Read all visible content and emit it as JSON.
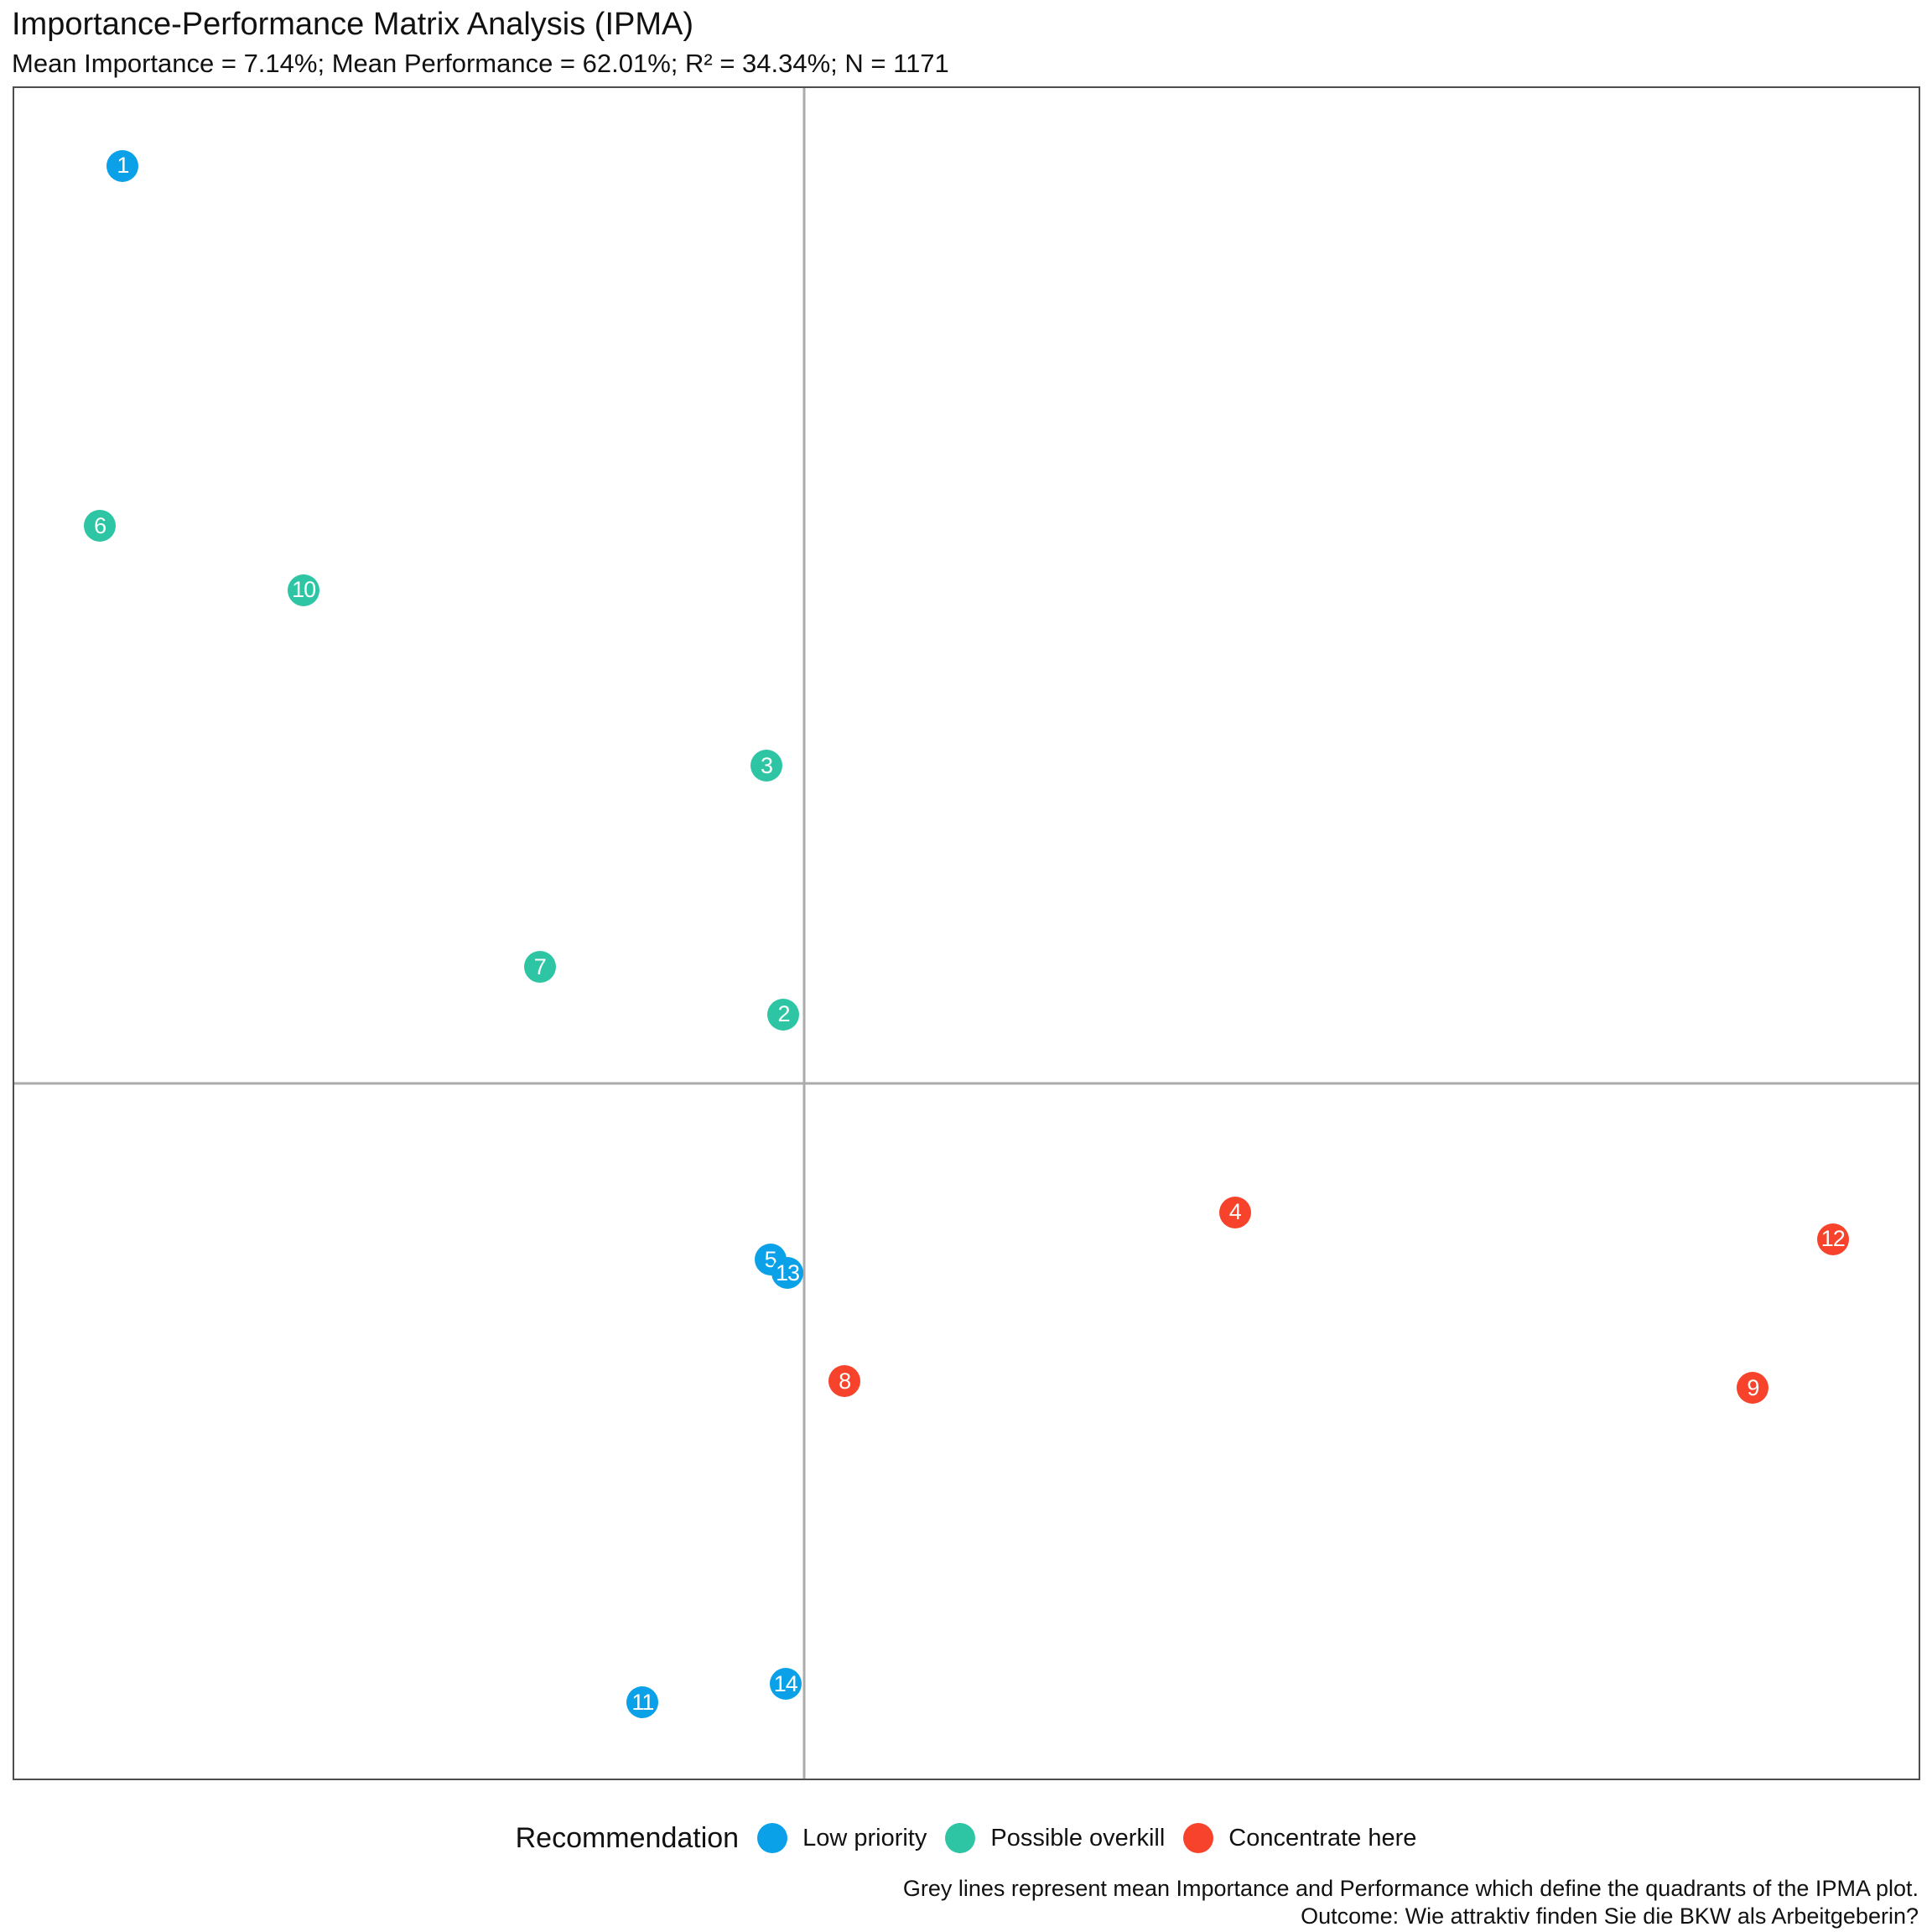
{
  "title": "Importance-Performance Matrix Analysis (IPMA)",
  "subtitle": "Mean Importance = 7.14%; Mean Performance = 62.01%; R² = 34.34%; N = 1171",
  "colors": {
    "low_priority": "#0aa1e8",
    "possible_overkill": "#2ec5a5",
    "concentrate_here": "#f8432c",
    "mean_line": "#ababab",
    "panel_border": "#4d4d4d"
  },
  "legend": {
    "title": "Recommendation",
    "items": [
      {
        "label": "Low priority",
        "category": "low_priority"
      },
      {
        "label": "Possible overkill",
        "category": "possible_overkill"
      },
      {
        "label": "Concentrate here",
        "category": "concentrate_here"
      }
    ]
  },
  "footnotes": {
    "line1": "Grey lines represent mean Importance and Performance which define the quadrants of the IPMA plot.",
    "line2": "Outcome: Wie attraktiv finden Sie die BKW als Arbeitgeberin?"
  },
  "chart_data": {
    "type": "scatter",
    "title": "Importance-Performance Matrix Analysis (IPMA)",
    "subtitle": "Mean Importance = 7.14%; Mean Performance = 62.01%; R² = 34.34%; N = 1171",
    "stats": {
      "mean_importance": "7.14%",
      "mean_performance": "62.01%",
      "r_squared": "34.34%",
      "n": 1171
    },
    "axes": {
      "x": "Importance",
      "y": "Performance",
      "ticks_visible": false,
      "axis_labels_visible": false
    },
    "grid": "off",
    "legend_position": "bottom",
    "quadrant_lines": {
      "vertical_x_pct": 41.5,
      "horizontal_y_pct": 58.9
    },
    "points": [
      {
        "id": 1,
        "label": "1",
        "category": "low_priority",
        "category_label": "Low priority",
        "x_pct": 39.7,
        "y_pct_from_top": 69.3
      },
      {
        "id": 2,
        "label": "2",
        "category": "possible_overkill",
        "category_label": "Possible overkill",
        "x_pct": 40.4,
        "y_pct_from_top": 54.8
      },
      {
        "id": 3,
        "label": "3",
        "category": "possible_overkill",
        "category_label": "Possible overkill",
        "x_pct": 39.5,
        "y_pct_from_top": 40.1
      },
      {
        "id": 4,
        "label": "4",
        "category": "concentrate_here",
        "category_label": "Concentrate here",
        "x_pct": 64.1,
        "y_pct_from_top": 66.5
      },
      {
        "id": 5,
        "label": "5",
        "category": "low_priority",
        "category_label": "Low priority",
        "x_pct": 39.7,
        "y_pct_from_top": 69.3
      },
      {
        "id": 6,
        "label": "6",
        "category": "possible_overkill",
        "category_label": "Possible overkill",
        "x_pct": 4.5,
        "y_pct_from_top": 25.9
      },
      {
        "id": 7,
        "label": "7",
        "category": "possible_overkill",
        "category_label": "Possible overkill",
        "x_pct": 27.6,
        "y_pct_from_top": 52.0
      },
      {
        "id": 8,
        "label": "8",
        "category": "concentrate_here",
        "category_label": "Concentrate here",
        "x_pct": 43.6,
        "y_pct_from_top": 76.5
      },
      {
        "id": 9,
        "label": "9",
        "category": "concentrate_here",
        "category_label": "Concentrate here",
        "x_pct": 91.3,
        "y_pct_from_top": 76.9
      },
      {
        "id": 10,
        "label": "10",
        "category": "possible_overkill",
        "category_label": "Possible overkill",
        "x_pct": 15.2,
        "y_pct_from_top": 29.7
      },
      {
        "id": 11,
        "label": "11",
        "category": "low_priority",
        "category_label": "Low priority",
        "x_pct": 33.0,
        "y_pct_from_top": 95.5
      },
      {
        "id": 12,
        "label": "12",
        "category": "concentrate_here",
        "category_label": "Concentrate here",
        "x_pct": 95.5,
        "y_pct_from_top": 68.1
      },
      {
        "id": 13,
        "label": "13",
        "category": "low_priority",
        "category_label": "Low priority",
        "x_pct": 40.6,
        "y_pct_from_top": 70.1
      },
      {
        "id": 14,
        "label": "14",
        "category": "low_priority",
        "category_label": "Low priority",
        "x_pct": 40.5,
        "y_pct_from_top": 94.4
      }
    ],
    "overrides": {
      "point_1_position": {
        "x_pct": 5.7,
        "y_pct_from_top": 4.6
      }
    }
  }
}
